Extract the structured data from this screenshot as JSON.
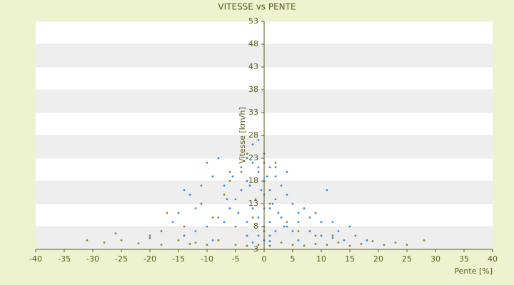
{
  "chart_data": {
    "type": "scatter",
    "title": "VITESSE vs PENTE",
    "x_label": "Pente [%]",
    "y_label": "Vitesse [km/h]",
    "xlim": [
      -40,
      40
    ],
    "xticks": [
      -40,
      -35,
      -30,
      -25,
      -20,
      -15,
      -10,
      -5,
      0,
      5,
      10,
      15,
      20,
      25,
      30,
      35,
      40
    ],
    "ylim": [
      3,
      53
    ],
    "yticks": [
      3,
      8,
      13,
      18,
      23,
      28,
      33,
      38,
      43,
      48,
      53
    ],
    "grid": true,
    "series": [
      {
        "color": "#3a8ad8",
        "x": [
          -1,
          0,
          1,
          2,
          -2,
          0,
          1,
          3,
          -3,
          0,
          2,
          4,
          5,
          -4,
          -5,
          -6,
          -8,
          -10,
          -12,
          -14,
          6,
          8,
          10,
          12,
          14,
          -1,
          0,
          1,
          -2,
          -3,
          -7,
          -9,
          -10,
          -11,
          -13,
          -15,
          -16,
          -18,
          7,
          9,
          11,
          -2,
          -1,
          -4,
          -6,
          -8,
          3,
          4,
          5,
          6,
          2,
          0,
          -1,
          1,
          0,
          1,
          -3,
          -5,
          -7,
          -9,
          -20,
          16,
          18,
          -0.5,
          0.5,
          1.5,
          2.5,
          -1.5,
          -2.5,
          3.5,
          -4.5,
          -5.5,
          -6.5,
          -11,
          -12,
          -14,
          8,
          10,
          13,
          15,
          -3,
          -1,
          0,
          2,
          4,
          -2,
          1,
          6,
          -8,
          12
        ],
        "values": [
          20,
          18,
          16,
          14,
          22,
          24,
          12,
          10,
          18,
          15,
          19,
          8,
          7,
          16,
          14,
          12,
          10,
          8,
          7,
          6,
          9,
          7,
          6,
          5.5,
          5,
          10,
          8,
          6,
          12,
          9,
          17,
          19,
          22,
          13,
          15,
          11,
          9,
          7,
          12,
          11,
          16,
          26,
          27,
          21,
          20,
          23,
          17,
          15,
          13,
          11,
          7,
          5,
          6,
          21,
          12,
          9,
          6,
          8,
          9,
          5,
          5.5,
          6,
          5,
          16,
          19,
          13,
          11,
          14,
          17,
          8,
          11,
          19,
          14,
          17,
          12,
          16,
          10,
          9,
          7,
          8,
          23,
          21,
          22,
          21,
          20,
          4.5,
          4.8,
          5,
          5,
          9
        ]
      },
      {
        "color": "#8a8a1a",
        "x": [
          -31,
          -28,
          -26,
          -25,
          -22,
          -20,
          -18,
          -15,
          -13,
          -12,
          -10,
          -8,
          -5,
          -3,
          -1,
          1,
          3,
          5,
          7,
          9,
          11,
          13,
          15,
          17,
          19,
          21,
          23,
          25,
          28,
          -4,
          -6,
          -3,
          2,
          -9,
          -14,
          6,
          9,
          -17,
          -11,
          -7,
          4,
          12,
          -2,
          0,
          1
        ],
        "values": [
          5,
          4.5,
          6.5,
          5,
          4.3,
          6,
          4,
          5,
          4.2,
          4.5,
          4,
          5,
          4,
          3.8,
          4,
          3.8,
          4.5,
          4,
          3.8,
          4.2,
          4,
          4.5,
          3.8,
          4.2,
          4.8,
          4,
          4.5,
          4,
          5,
          20,
          18,
          24,
          22,
          10,
          8,
          7,
          6,
          11,
          13,
          15,
          9,
          6,
          10,
          7,
          13
        ]
      }
    ]
  }
}
